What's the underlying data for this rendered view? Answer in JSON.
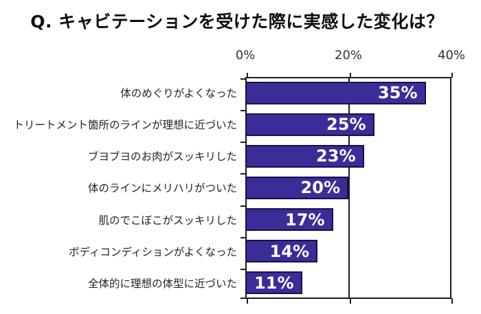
{
  "title": "Q. キャビテーションを受けた際に実感した変化は？",
  "chart_data": {
    "type": "bar",
    "orientation": "horizontal",
    "title": "Q. キャビテーションを受けた際に実感した変化は？",
    "categories": [
      "体のめぐりがよくなった",
      "トリートメント箇所のラインが理想に近づいた",
      "ブヨブヨのお肉がスッキリした",
      "体のラインにメリハリがついた",
      "肌のでこぼこがスッキリした",
      "ボディコンディションがよくなった",
      "全体的に理想の体型に近づいた"
    ],
    "values": [
      35,
      25,
      23,
      20,
      17,
      14,
      11
    ],
    "value_labels": [
      "35%",
      "25%",
      "23%",
      "20%",
      "17%",
      "14%",
      "11%"
    ],
    "x_ticks": [
      {
        "label": "0%",
        "value": 0
      },
      {
        "label": "20%",
        "value": 20
      },
      {
        "label": "40%",
        "value": 40
      }
    ],
    "xlim": [
      0,
      40
    ],
    "gridline_values": [
      20
    ],
    "legend": null,
    "colors": {
      "bar_fill": "#3a2d98",
      "bar_border": "#191048",
      "value_label": "#ffffff",
      "axis_line": "#1c1c1c",
      "title_text": "#0d0d0d",
      "category_text": "#222222",
      "tick_label_text": "#333333",
      "background": "#ffffff"
    }
  }
}
